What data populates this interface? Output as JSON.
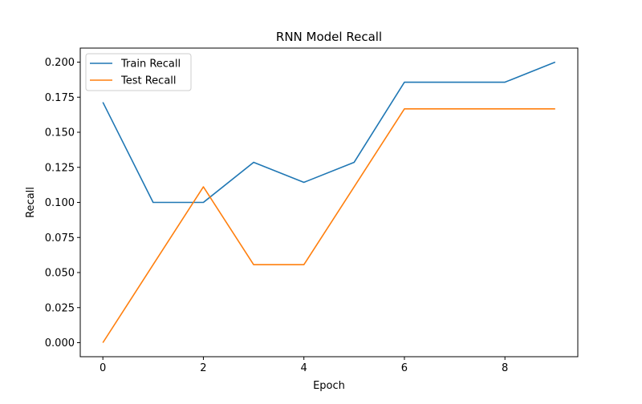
{
  "chart_data": {
    "type": "line",
    "title": "RNN Model Recall",
    "xlabel": "Epoch",
    "ylabel": "Recall",
    "x": [
      0,
      1,
      2,
      3,
      4,
      5,
      6,
      7,
      8,
      9
    ],
    "series": [
      {
        "name": "Train Recall",
        "color": "#1f77b4",
        "values": [
          0.1714,
          0.1,
          0.1,
          0.1286,
          0.1143,
          0.1286,
          0.1857,
          0.1857,
          0.1857,
          0.2
        ]
      },
      {
        "name": "Test Recall",
        "color": "#ff7f0e",
        "values": [
          0.0,
          0.0556,
          0.1111,
          0.0556,
          0.0556,
          0.1111,
          0.1667,
          0.1667,
          0.1667,
          0.1667
        ]
      }
    ],
    "xlim": [
      -0.45,
      9.45
    ],
    "ylim": [
      -0.01,
      0.21
    ],
    "xticks": [
      0,
      2,
      4,
      6,
      8
    ],
    "xtick_labels": [
      "0",
      "2",
      "4",
      "6",
      "8"
    ],
    "yticks": [
      0.0,
      0.025,
      0.05,
      0.075,
      0.1,
      0.125,
      0.15,
      0.175,
      0.2
    ],
    "ytick_labels": [
      "0.000",
      "0.025",
      "0.050",
      "0.075",
      "0.100",
      "0.125",
      "0.150",
      "0.175",
      "0.200"
    ],
    "grid": false,
    "legend_position": "upper-left"
  }
}
